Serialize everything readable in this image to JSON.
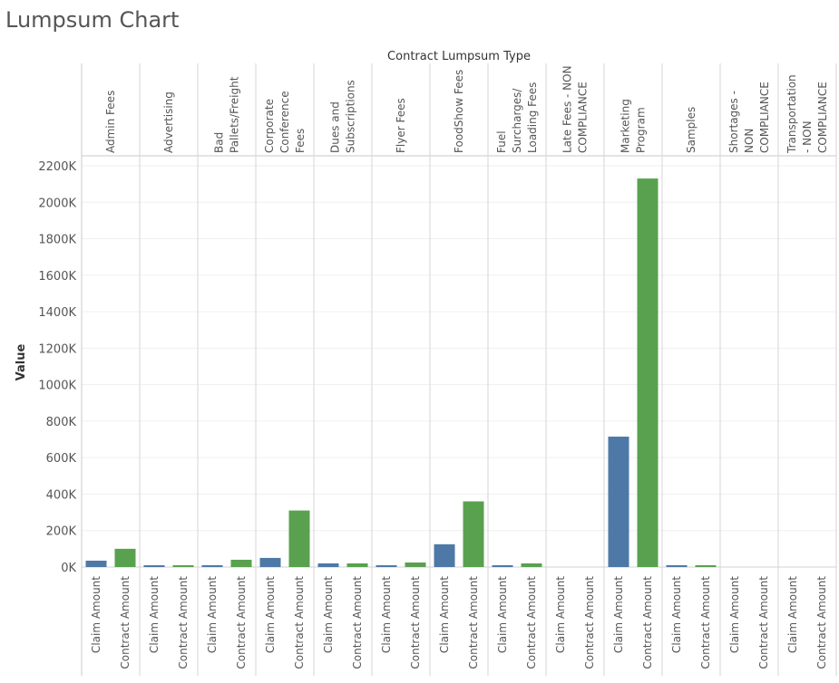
{
  "title": "Lumpsum Chart",
  "chart_data": {
    "type": "bar",
    "column_header": "Contract Lumpsum Type",
    "ylabel": "Value",
    "ylim": [
      0,
      2200000
    ],
    "yticks": [
      0,
      200000,
      400000,
      600000,
      800000,
      1000000,
      1200000,
      1400000,
      1600000,
      1800000,
      2000000,
      2200000
    ],
    "ytick_labels": [
      "0K",
      "200K",
      "400K",
      "600K",
      "800K",
      "1000K",
      "1200K",
      "1400K",
      "1600K",
      "1800K",
      "2000K",
      "2200K"
    ],
    "grid": true,
    "measures": [
      "Claim Amount",
      "Contract Amount"
    ],
    "colors": {
      "Claim Amount": "#4e79a7",
      "Contract Amount": "#59a14f"
    },
    "categories": [
      "Admin Fees",
      "Advertising",
      "Bad Pallets/Freight",
      "Corporate Conference Fees",
      "Dues and Subscriptions",
      "Flyer Fees",
      "FoodShow Fees",
      "Fuel Surcharges/ Loading Fees",
      "Late Fees - NON COMPLIANCE",
      "Marketing Program",
      "Samples",
      "Shortages - NON COMPLIANCE",
      "Transportation - NON COMPLIANCE"
    ],
    "category_lines": [
      [
        "Admin Fees"
      ],
      [
        "Advertising"
      ],
      [
        "Bad",
        "Pallets/Freight"
      ],
      [
        "Corporate",
        "Conference",
        "Fees"
      ],
      [
        "Dues and",
        "Subscriptions"
      ],
      [
        "Flyer Fees"
      ],
      [
        "FoodShow Fees"
      ],
      [
        "Fuel",
        "Surcharges/",
        "Loading Fees"
      ],
      [
        "Late Fees - NON",
        "COMPLIANCE"
      ],
      [
        "Marketing",
        "Program"
      ],
      [
        "Samples"
      ],
      [
        "Shortages -",
        "NON",
        "COMPLIANCE"
      ],
      [
        "Transportation",
        "- NON",
        "COMPLIANCE"
      ]
    ],
    "series": [
      {
        "name": "Claim Amount",
        "values": [
          35000,
          5000,
          10000,
          50000,
          20000,
          5000,
          125000,
          10000,
          0,
          715000,
          10000,
          0,
          0
        ]
      },
      {
        "name": "Contract Amount",
        "values": [
          100000,
          10000,
          40000,
          310000,
          20000,
          25000,
          360000,
          20000,
          0,
          2130000,
          10000,
          0,
          0
        ]
      }
    ]
  }
}
